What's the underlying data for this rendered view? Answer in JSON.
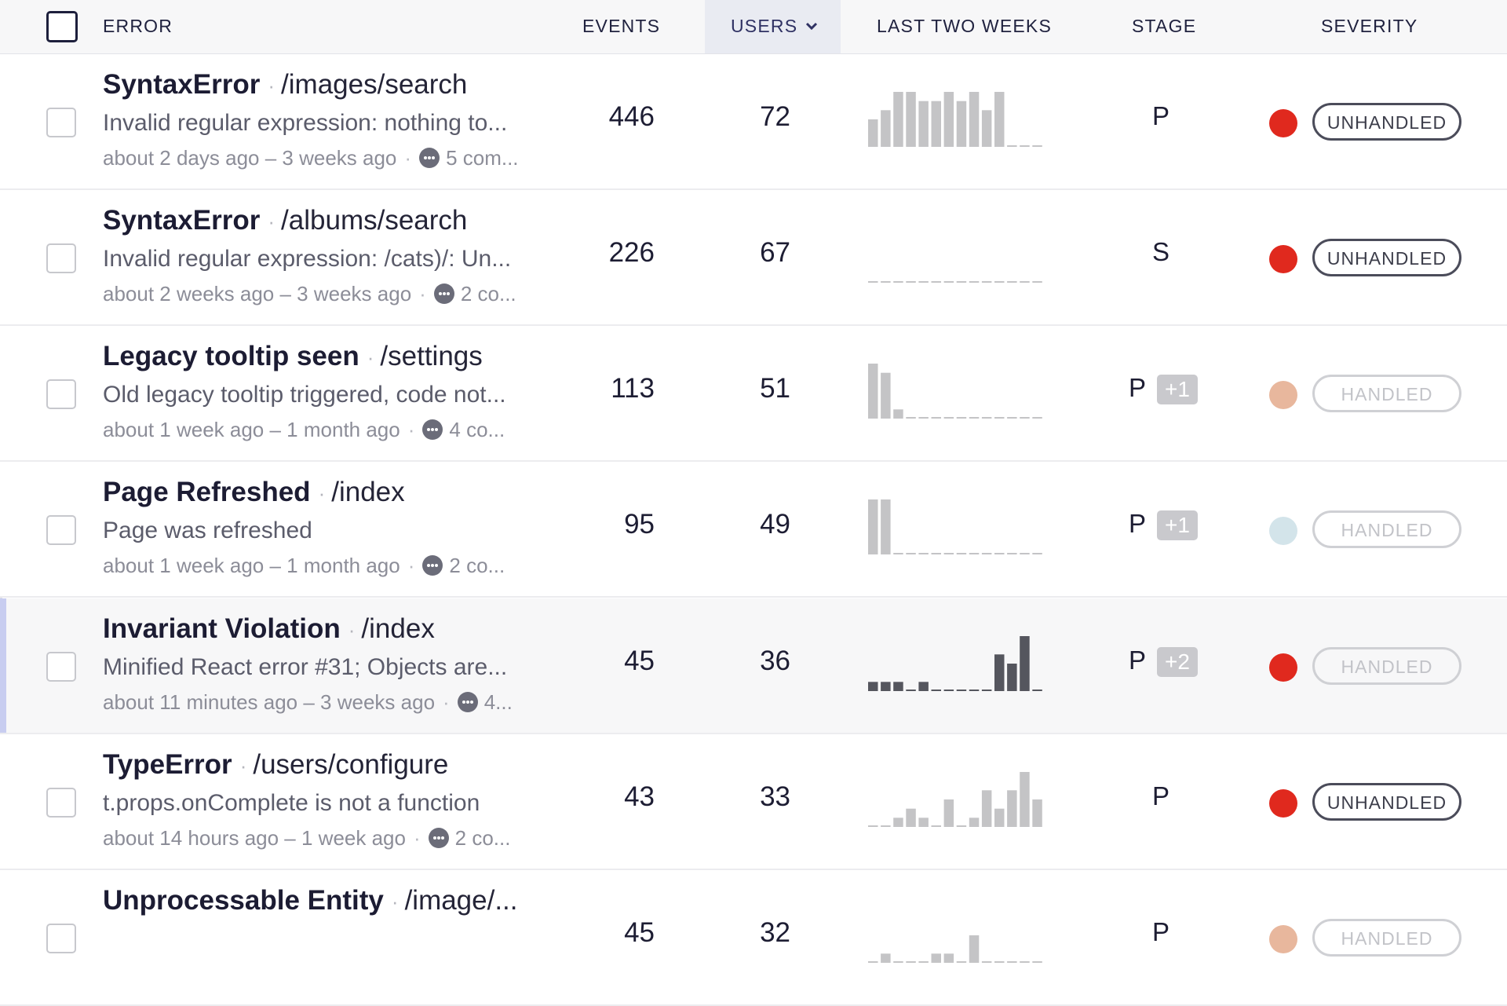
{
  "header": {
    "error": "ERROR",
    "events": "EVENTS",
    "users": "USERS",
    "last_two_weeks": "LAST TWO WEEKS",
    "stage": "STAGE",
    "severity": "SEVERITY"
  },
  "colors": {
    "unhandled_red": "#e0291e",
    "handled_peach": "#e8b79d",
    "handled_lightblue": "#d3e4ea",
    "spark_light": "#c4c4c6",
    "spark_dark": "#55565e",
    "highlight_bar": "#c8cdf0"
  },
  "icons": [
    "chevron-down-icon",
    "comment-icon",
    "checkbox-icon"
  ],
  "rows": [
    {
      "name": "SyntaxError",
      "path": "/images/search",
      "message": "Invalid regular expression: nothing to...",
      "time_range": "about 2 days ago – 3 weeks ago",
      "comments": "5 com...",
      "events": "446",
      "users": "72",
      "stage": "P",
      "stage_extra": "",
      "severity_color": "#e0291e",
      "badge": "UNHANDLED",
      "trend": [
        3,
        4,
        6,
        6,
        5,
        5,
        6,
        5,
        6,
        4,
        6,
        0,
        0,
        0
      ],
      "trend_color": "#c4c4c6"
    },
    {
      "name": "SyntaxError",
      "path": "/albums/search",
      "message": "Invalid regular expression: /cats)/: Un...",
      "time_range": "about 2 weeks ago – 3 weeks ago",
      "comments": "2 co...",
      "events": "226",
      "users": "67",
      "stage": "S",
      "stage_extra": "",
      "severity_color": "#e0291e",
      "badge": "UNHANDLED",
      "trend": [
        0,
        0,
        0,
        0,
        0,
        0,
        0,
        0,
        0,
        0,
        0,
        0,
        0,
        0
      ],
      "trend_color": "#c4c4c6"
    },
    {
      "name": "Legacy tooltip seen",
      "path": "/settings",
      "message": "Old legacy tooltip triggered, code not...",
      "time_range": "about 1 week ago – 1 month ago",
      "comments": "4 co...",
      "events": "113",
      "users": "51",
      "stage": "P",
      "stage_extra": "+1",
      "severity_color": "#e8b79d",
      "badge": "HANDLED",
      "trend": [
        6,
        5,
        1,
        0,
        0,
        0,
        0,
        0,
        0,
        0,
        0,
        0,
        0,
        0
      ],
      "trend_color": "#c4c4c6"
    },
    {
      "name": "Page Refreshed",
      "path": "/index",
      "message": "Page was refreshed",
      "time_range": "about 1 week ago – 1 month ago",
      "comments": "2 co...",
      "events": "95",
      "users": "49",
      "stage": "P",
      "stage_extra": "+1",
      "severity_color": "#d3e4ea",
      "badge": "HANDLED",
      "trend": [
        6,
        6,
        0,
        0,
        0,
        0,
        0,
        0,
        0,
        0,
        0,
        0,
        0,
        0
      ],
      "trend_color": "#c4c4c6"
    },
    {
      "name": "Invariant Violation",
      "path": "/index",
      "message": "Minified React error #31; Objects are...",
      "time_range": "about 11 minutes ago – 3 weeks ago",
      "comments": "4...",
      "events": "45",
      "users": "36",
      "stage": "P",
      "stage_extra": "+2",
      "severity_color": "#e0291e",
      "badge": "HANDLED",
      "trend": [
        1,
        1,
        1,
        0,
        1,
        0,
        0,
        0,
        0,
        0,
        4,
        3,
        6,
        0
      ],
      "trend_color": "#55565e"
    },
    {
      "name": "TypeError",
      "path": "/users/configure",
      "message": "t.props.onComplete is not a function",
      "time_range": "about 14 hours ago – 1 week ago",
      "comments": "2 co...",
      "events": "43",
      "users": "33",
      "stage": "P",
      "stage_extra": "",
      "severity_color": "#e0291e",
      "badge": "UNHANDLED",
      "trend": [
        0,
        0,
        1,
        2,
        1,
        0,
        3,
        0,
        1,
        4,
        2,
        4,
        6,
        3
      ],
      "trend_color": "#c4c4c6"
    },
    {
      "name": "Unprocessable Entity",
      "path": "/image/...",
      "message": "",
      "time_range": "",
      "comments": "",
      "events": "45",
      "users": "32",
      "stage": "P",
      "stage_extra": "",
      "severity_color": "#e8b79d",
      "badge": "HANDLED",
      "trend": [
        0,
        1,
        0,
        0,
        0,
        1,
        1,
        0,
        3,
        0,
        0,
        0,
        0,
        0
      ],
      "trend_color": "#c4c4c6"
    }
  ]
}
